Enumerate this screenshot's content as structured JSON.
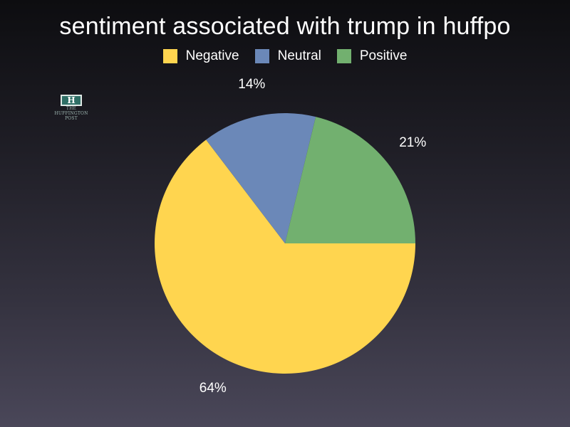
{
  "chart_data": {
    "type": "pie",
    "title": "sentiment associated with trump in huffpo",
    "categories": [
      "Negative",
      "Neutral",
      "Positive"
    ],
    "values": [
      64,
      14,
      21
    ],
    "value_labels": [
      "64%",
      "14%",
      "21%"
    ],
    "colors": [
      "#ffd54f",
      "#6b88b8",
      "#72b06f"
    ],
    "legend_position": "top"
  },
  "logo": {
    "mark": "H",
    "caption_line1": "THE",
    "caption_line2": "HUFFINGTON",
    "caption_line3": "POST"
  }
}
